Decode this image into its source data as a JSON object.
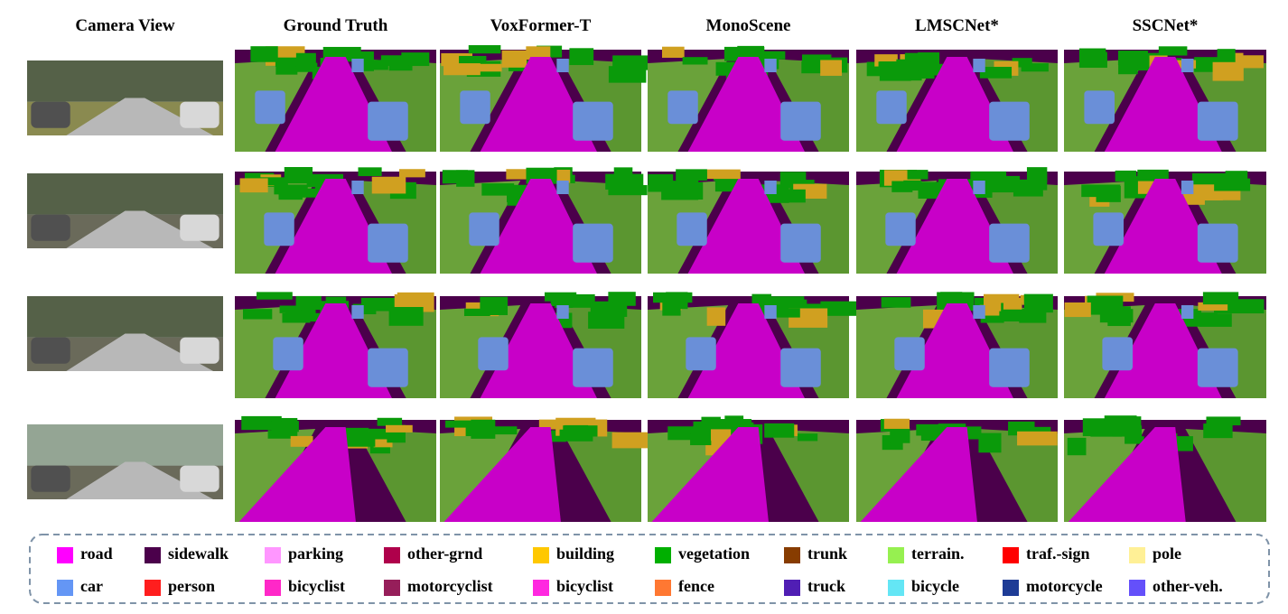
{
  "figure": {
    "columns": [
      "Camera View",
      "Ground Truth",
      "VoxFormer-T",
      "MonoScene",
      "LMSCNet*",
      "SSCNet*"
    ],
    "legend": [
      {
        "label": "road",
        "color": "#ff00ff"
      },
      {
        "label": "sidewalk",
        "color": "#4b004b"
      },
      {
        "label": "parking",
        "color": "#ff96ff"
      },
      {
        "label": "other-grnd",
        "color": "#af004b"
      },
      {
        "label": "building",
        "color": "#ffc800"
      },
      {
        "label": "vegetation",
        "color": "#00af00"
      },
      {
        "label": "trunk",
        "color": "#873c00"
      },
      {
        "label": "terrain.",
        "color": "#96f050"
      },
      {
        "label": "traf.-sign",
        "color": "#ff0000"
      },
      {
        "label": "pole",
        "color": "#fff096"
      },
      {
        "label": "car",
        "color": "#6496f5"
      },
      {
        "label": "person",
        "color": "#ff1e1e"
      },
      {
        "label": "bicyclist",
        "color": "#ff28c8"
      },
      {
        "label": "motorcyclist",
        "color": "#961e5a"
      },
      {
        "label": "bicyclist",
        "color": "#ff28e0"
      },
      {
        "label": "fence",
        "color": "#ff7832"
      },
      {
        "label": "truck",
        "color": "#501eb4"
      },
      {
        "label": "bicycle",
        "color": "#64e6f5"
      },
      {
        "label": "motorcycle",
        "color": "#1e3c96"
      },
      {
        "label": "other-veh.",
        "color": "#6450fa"
      }
    ]
  }
}
